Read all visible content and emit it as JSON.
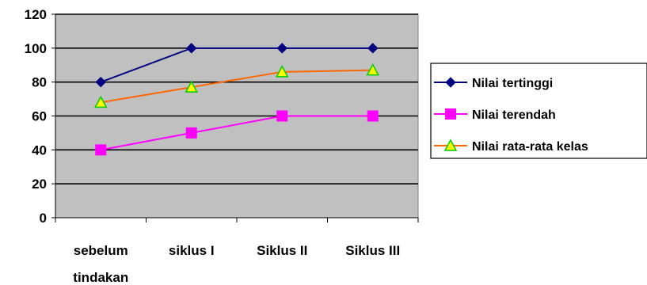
{
  "chart_data": {
    "type": "line",
    "categories": [
      [
        "sebelum",
        "tindakan"
      ],
      [
        "siklus I"
      ],
      [
        "Siklus II"
      ],
      [
        "Siklus III"
      ]
    ],
    "ylim": [
      0,
      120
    ],
    "yticks": [
      0,
      20,
      40,
      60,
      80,
      100,
      120
    ],
    "grid": true,
    "plot_background": "#C0C0C0",
    "legend_position": "right",
    "series": [
      {
        "name": "Nilai tertinggi",
        "values": [
          80,
          100,
          100,
          100
        ],
        "color": "#000080",
        "marker": "diamond",
        "marker_fill": "#000080"
      },
      {
        "name": "Nilai terendah",
        "values": [
          40,
          50,
          60,
          60
        ],
        "color": "#FF00FF",
        "marker": "square",
        "marker_fill": "#FF00FF"
      },
      {
        "name": "Nilai rata-rata kelas",
        "values": [
          68,
          77,
          86,
          87
        ],
        "color": "#FF6600",
        "marker": "triangle",
        "marker_fill": "#FFFF00",
        "marker_stroke": "#00CC00"
      }
    ]
  }
}
